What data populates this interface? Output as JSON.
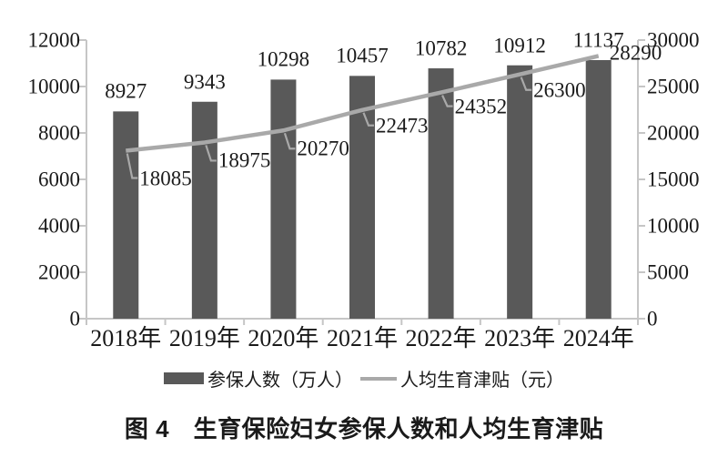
{
  "chart_data": {
    "type": "bar+line",
    "title": "图 4　生育保险妇女参保人数和人均生育津贴",
    "categories": [
      "2018年",
      "2019年",
      "2020年",
      "2021年",
      "2022年",
      "2023年",
      "2024年"
    ],
    "series": [
      {
        "name": "参保人数（万人）",
        "type": "bar",
        "y_axis": "left",
        "color": "#595959",
        "values": [
          8927,
          9343,
          10298,
          10457,
          10782,
          10912,
          11137
        ]
      },
      {
        "name": "人均生育津贴（元）",
        "type": "line",
        "y_axis": "right",
        "color": "#a9a9a9",
        "values": [
          18085,
          18975,
          20270,
          22473,
          24352,
          26300,
          28290
        ]
      }
    ],
    "left_axis": {
      "min": 0,
      "max": 12000,
      "tick_step": 2000,
      "tick_labels_top_to_bottom": [
        "12000",
        "10000",
        "8000",
        "6000",
        "4000",
        "2000",
        "0"
      ]
    },
    "right_axis": {
      "min": 0,
      "max": 30000,
      "tick_step": 5000,
      "tick_labels_top_to_bottom": [
        "30000",
        "25000",
        "20000",
        "15000",
        "10000",
        "5000",
        "0"
      ]
    },
    "grid": false,
    "data_labels_shown": true,
    "legend_position": "bottom"
  },
  "legend": {
    "bar_label": "参保人数（万人）",
    "line_label": "人均生育津贴（元）"
  },
  "caption": {
    "text": "图 4　生育保险妇女参保人数和人均生育津贴"
  },
  "colors": {
    "bar": "#595959",
    "line": "#a9a9a9",
    "axis": "#c6c6c6",
    "text": "#1a1a1a",
    "background": "#ffffff"
  }
}
